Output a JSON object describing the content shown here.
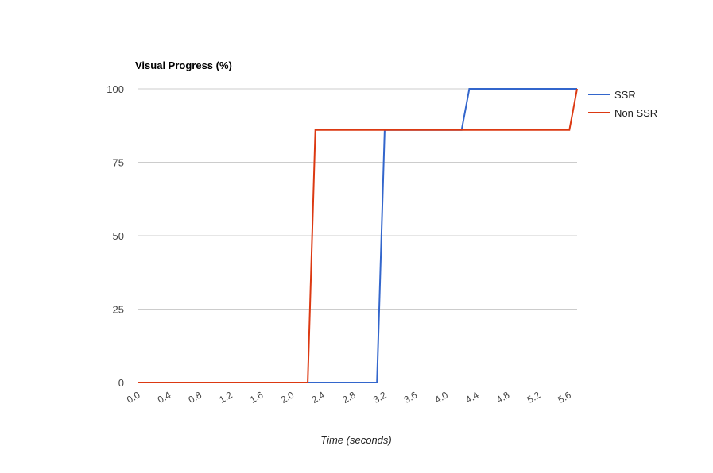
{
  "chart_data": {
    "type": "line",
    "title": "Visual Progress (%)",
    "xlabel": "Time (seconds)",
    "ylabel": "",
    "xlim": [
      0.0,
      5.7
    ],
    "ylim": [
      0,
      100
    ],
    "x_ticks": [
      "0.0",
      "0.4",
      "0.8",
      "1.2",
      "1.6",
      "2.0",
      "2.4",
      "2.8",
      "3.2",
      "3.6",
      "4.0",
      "4.4",
      "4.8",
      "5.2",
      "5.6"
    ],
    "y_ticks": [
      "0",
      "25",
      "50",
      "75",
      "100"
    ],
    "grid": true,
    "legend_position": "right",
    "series": [
      {
        "name": "SSR",
        "color": "#3366cc",
        "points": [
          [
            0.0,
            0
          ],
          [
            3.1,
            0
          ],
          [
            3.2,
            86
          ],
          [
            4.2,
            86
          ],
          [
            4.3,
            100
          ],
          [
            5.7,
            100
          ]
        ]
      },
      {
        "name": "Non SSR",
        "color": "#dc3912",
        "points": [
          [
            0.0,
            0
          ],
          [
            2.2,
            0
          ],
          [
            2.3,
            86
          ],
          [
            5.6,
            86
          ],
          [
            5.7,
            100
          ]
        ]
      }
    ]
  }
}
